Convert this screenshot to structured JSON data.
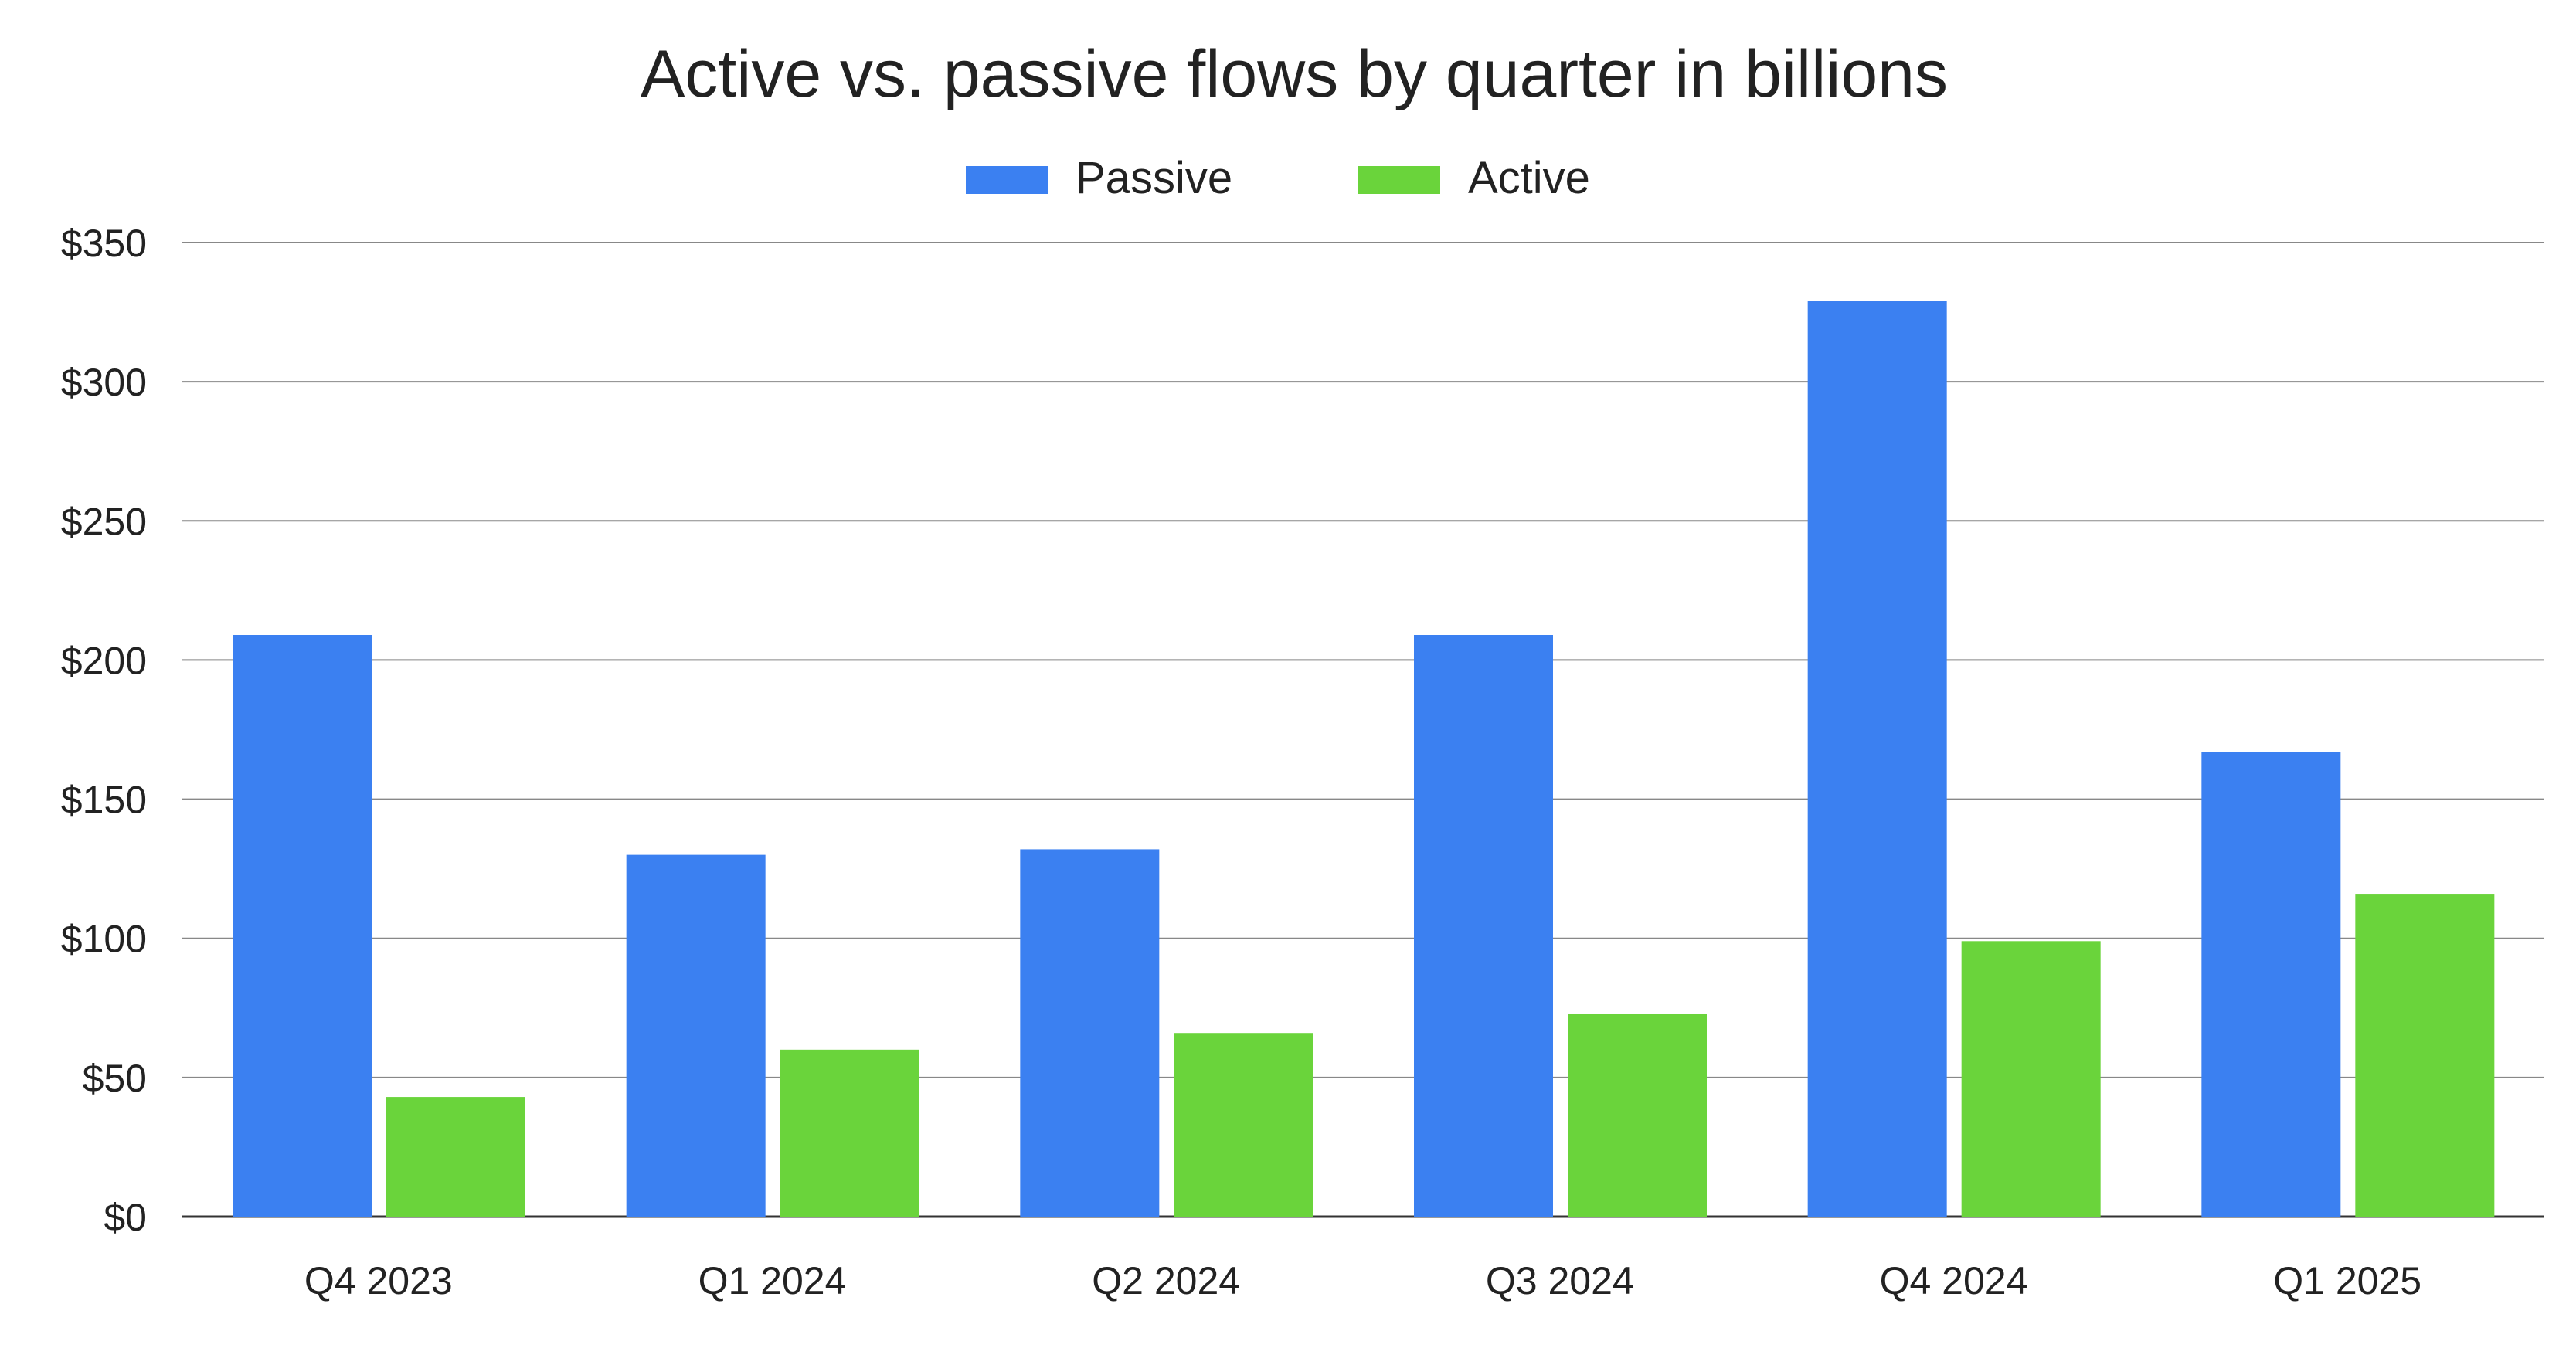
{
  "chart_data": {
    "type": "bar",
    "title": "Active vs. passive flows by quarter in billions",
    "xlabel": "",
    "ylabel": "",
    "categories": [
      "Q4 2023",
      "Q1 2024",
      "Q2 2024",
      "Q3 2024",
      "Q4 2024",
      "Q1 2025"
    ],
    "series": [
      {
        "name": "Passive",
        "color": "#3b80f1",
        "values": [
          209,
          130,
          132,
          209,
          329,
          167
        ]
      },
      {
        "name": "Active",
        "color": "#6ad43b",
        "values": [
          43,
          60,
          66,
          73,
          99,
          116
        ]
      }
    ],
    "ylim": [
      0,
      350
    ],
    "yticks": [
      0,
      50,
      100,
      150,
      200,
      250,
      300,
      350
    ],
    "ytick_labels": [
      "$0",
      "$50",
      "$100",
      "$150",
      "$200",
      "$250",
      "$300",
      "$350"
    ],
    "grid": true,
    "legend_position": "top-center"
  }
}
